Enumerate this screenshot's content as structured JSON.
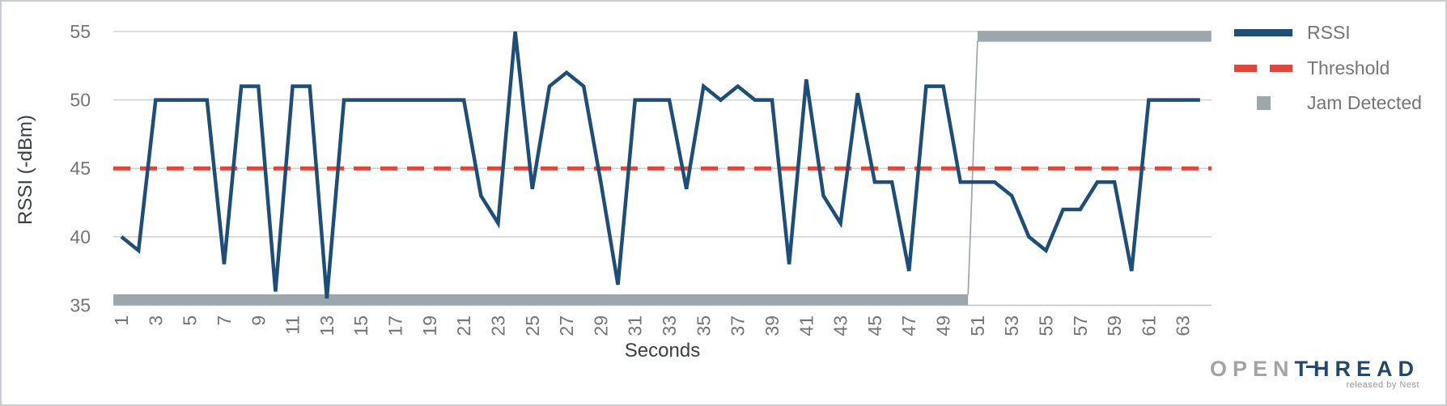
{
  "chart_data": {
    "type": "line",
    "title": "",
    "xlabel": "Seconds",
    "ylabel": "RSSI (-dBm)",
    "grid": true,
    "legend_position": "right-top",
    "ylim": [
      35,
      55
    ],
    "y_ticks": [
      55,
      50,
      45,
      40,
      35
    ],
    "x_ticks": [
      1,
      3,
      5,
      7,
      9,
      11,
      13,
      15,
      17,
      19,
      21,
      23,
      25,
      27,
      29,
      31,
      33,
      35,
      37,
      39,
      41,
      43,
      45,
      47,
      49,
      51,
      53,
      55,
      57,
      59,
      61,
      63
    ],
    "x_start": 1,
    "x_step": 1,
    "series": [
      {
        "name": "RSSI",
        "type": "line",
        "color": "#1e4e78",
        "values": [
          40,
          39,
          50,
          50,
          50,
          50,
          38,
          51,
          51,
          36,
          51,
          51,
          35.5,
          50,
          50,
          50,
          50,
          50,
          50,
          50,
          50,
          43,
          41,
          55,
          43.5,
          51,
          52,
          51,
          44,
          36.5,
          50,
          50,
          50,
          43.5,
          51,
          50,
          51,
          50,
          50,
          38,
          51.5,
          43,
          41,
          50.5,
          44,
          44,
          37.5,
          51,
          51,
          44,
          44,
          44,
          43,
          40,
          39,
          42,
          42,
          44,
          44,
          37.5,
          50,
          50,
          50,
          50
        ]
      },
      {
        "name": "Threshold",
        "type": "dashed-horizontal-line",
        "color": "#e0473a",
        "value": 45
      },
      {
        "name": "Jam Detected",
        "type": "step-band",
        "color": "#9ca6ac",
        "low_value": 35.4,
        "high_value": 54.65,
        "low_span_sec": [
          0.53,
          50.45
        ],
        "high_span_sec": [
          51.0,
          64.66
        ],
        "transition_sec": [
          50.45,
          51.0
        ]
      }
    ]
  },
  "legend": {
    "items": [
      {
        "label": "RSSI",
        "color": "#1e4e78",
        "swatch": "line"
      },
      {
        "label": "Threshold",
        "color": "#e0473a",
        "swatch": "dashed-line"
      },
      {
        "label": "Jam Detected",
        "color": "#9ca6ac",
        "swatch": "square"
      }
    ]
  },
  "axes": {
    "x_title": "Seconds",
    "y_title": "RSSI (-dBm)"
  },
  "logo": {
    "open": "OPEN",
    "thread_t": "T",
    "thread_h": "H",
    "thread_rest": "READ",
    "tagline": "released by Nest"
  }
}
